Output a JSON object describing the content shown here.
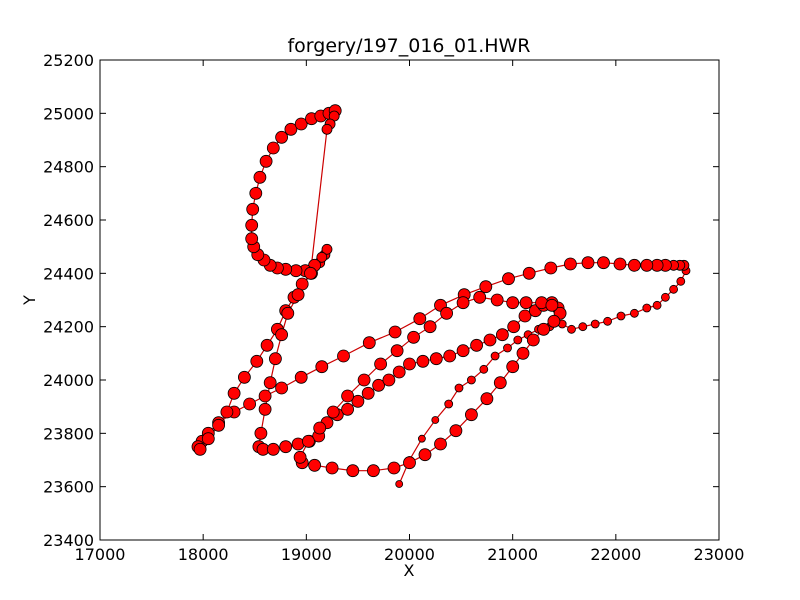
{
  "chart_data": {
    "type": "scatter",
    "title": "forgery/197_016_01.HWR",
    "xlabel": "X",
    "ylabel": "Y",
    "xlim": [
      17000,
      23000
    ],
    "ylim": [
      23400,
      25200
    ],
    "xticks": [
      17000,
      18000,
      19000,
      20000,
      21000,
      22000,
      23000
    ],
    "yticks": [
      23400,
      23600,
      23800,
      24000,
      24200,
      24400,
      24600,
      24800,
      25000,
      25200
    ],
    "grid": false,
    "legend": "none",
    "marker_color": "#ff0000",
    "line_color": "#cc0000",
    "edge_color": "#000000",
    "series": [
      {
        "points": [
          [
            19900,
            23610,
            3.5
          ],
          [
            20000,
            23700,
            3.5
          ],
          [
            20120,
            23780,
            3.5
          ],
          [
            20250,
            23850,
            3.5
          ],
          [
            20380,
            23910,
            4
          ],
          [
            20480,
            23970,
            4
          ],
          [
            20600,
            24000,
            4
          ],
          [
            20720,
            24040,
            4
          ],
          [
            20830,
            24090,
            4
          ],
          [
            20950,
            24120,
            4
          ],
          [
            21050,
            24150,
            4
          ],
          [
            21150,
            24170,
            4
          ],
          [
            21250,
            24190,
            4
          ],
          [
            21360,
            24200,
            4
          ],
          [
            21480,
            24210,
            4
          ],
          [
            21570,
            24190,
            4
          ],
          [
            21680,
            24200,
            4
          ],
          [
            21800,
            24210,
            4
          ],
          [
            21920,
            24220,
            4
          ],
          [
            22050,
            24240,
            4
          ],
          [
            22180,
            24250,
            4
          ],
          [
            22300,
            24270,
            4
          ],
          [
            22400,
            24280,
            4
          ],
          [
            22480,
            24310,
            4
          ],
          [
            22560,
            24340,
            4
          ],
          [
            22630,
            24370,
            4
          ],
          [
            22680,
            24410,
            4
          ],
          [
            22660,
            24430,
            5
          ],
          [
            22620,
            24430,
            5
          ],
          [
            22560,
            24430,
            5
          ],
          [
            22480,
            24430,
            6
          ],
          [
            22400,
            24430,
            6
          ],
          [
            22300,
            24430,
            6
          ],
          [
            22180,
            24430,
            6
          ],
          [
            22040,
            24435,
            6
          ],
          [
            21880,
            24440,
            6
          ],
          [
            21730,
            24440,
            6
          ],
          [
            21560,
            24435,
            6
          ],
          [
            21370,
            24420,
            6
          ],
          [
            21160,
            24400,
            6
          ],
          [
            20960,
            24380,
            6
          ],
          [
            20740,
            24350,
            6
          ],
          [
            20530,
            24320,
            6
          ],
          [
            20300,
            24280,
            6
          ],
          [
            20100,
            24230,
            6
          ],
          [
            19860,
            24180,
            6
          ],
          [
            19610,
            24140,
            6
          ],
          [
            19360,
            24090,
            6
          ],
          [
            19150,
            24050,
            6
          ],
          [
            18950,
            24010,
            6
          ],
          [
            18760,
            23970,
            6
          ],
          [
            18600,
            23940,
            6
          ],
          [
            18450,
            23910,
            6
          ],
          [
            18300,
            23880,
            6
          ],
          [
            18150,
            23840,
            6
          ],
          [
            18050,
            23800,
            6
          ],
          [
            17990,
            23770,
            6
          ],
          [
            17950,
            23750,
            6
          ],
          [
            17970,
            23740,
            6
          ],
          [
            18050,
            23780,
            6
          ],
          [
            18150,
            23830,
            6
          ],
          [
            18230,
            23880,
            6
          ],
          [
            18300,
            23950,
            6
          ],
          [
            18400,
            24010,
            6
          ],
          [
            18520,
            24070,
            6
          ],
          [
            18620,
            24130,
            6
          ],
          [
            18720,
            24190,
            6
          ],
          [
            18800,
            24260,
            6
          ],
          [
            18880,
            24310,
            6
          ],
          [
            18960,
            24360,
            6
          ],
          [
            19050,
            24400,
            6
          ],
          [
            19130,
            24440,
            5
          ],
          [
            19180,
            24470,
            5
          ],
          [
            19200,
            24490,
            5
          ],
          [
            19150,
            24460,
            5
          ],
          [
            19080,
            24430,
            6
          ],
          [
            18990,
            24410,
            6
          ],
          [
            18900,
            24410,
            6
          ],
          [
            18800,
            24415,
            6
          ],
          [
            18720,
            24420,
            6
          ],
          [
            18650,
            24430,
            6
          ],
          [
            18590,
            24450,
            6
          ],
          [
            18530,
            24470,
            6
          ],
          [
            18490,
            24500,
            6
          ],
          [
            18470,
            24530,
            6
          ],
          [
            18470,
            24580,
            6
          ],
          [
            18480,
            24640,
            6
          ],
          [
            18510,
            24700,
            6
          ],
          [
            18550,
            24760,
            6
          ],
          [
            18610,
            24820,
            6
          ],
          [
            18680,
            24870,
            6
          ],
          [
            18760,
            24910,
            6
          ],
          [
            18850,
            24940,
            6
          ],
          [
            18950,
            24960,
            6
          ],
          [
            19050,
            24980,
            6
          ],
          [
            19140,
            24990,
            6
          ],
          [
            19220,
            25000,
            6
          ],
          [
            19280,
            25010,
            6
          ],
          [
            19270,
            24990,
            5
          ],
          [
            19230,
            24960,
            5
          ],
          [
            19200,
            24940,
            5
          ],
          [
            19040,
            24400,
            6
          ],
          [
            18920,
            24320,
            6
          ],
          [
            18820,
            24250,
            6
          ],
          [
            18760,
            24170,
            6
          ],
          [
            18700,
            24080,
            6
          ],
          [
            18650,
            23990,
            6
          ],
          [
            18600,
            23890,
            6
          ],
          [
            18560,
            23800,
            6
          ],
          [
            18540,
            23750,
            6
          ],
          [
            18580,
            23740,
            6
          ],
          [
            18680,
            23740,
            6
          ],
          [
            18800,
            23750,
            6
          ],
          [
            18920,
            23760,
            6
          ],
          [
            19030,
            23770,
            6
          ],
          [
            19120,
            23790,
            6
          ],
          [
            19200,
            23840,
            6
          ],
          [
            19300,
            23870,
            6
          ],
          [
            19400,
            23890,
            6
          ],
          [
            19500,
            23920,
            6
          ],
          [
            19600,
            23950,
            6
          ],
          [
            19700,
            23980,
            6
          ],
          [
            19800,
            24000,
            6
          ],
          [
            19900,
            24030,
            6
          ],
          [
            20000,
            24060,
            6
          ],
          [
            20130,
            24070,
            6
          ],
          [
            20260,
            24080,
            6
          ],
          [
            20390,
            24090,
            6
          ],
          [
            20520,
            24110,
            6
          ],
          [
            20650,
            24130,
            6
          ],
          [
            20780,
            24150,
            6
          ],
          [
            20900,
            24170,
            6
          ],
          [
            21010,
            24200,
            6
          ],
          [
            21120,
            24240,
            6
          ],
          [
            21220,
            24260,
            6
          ],
          [
            21300,
            24280,
            6
          ],
          [
            21380,
            24290,
            6
          ],
          [
            21440,
            24270,
            6
          ],
          [
            21460,
            24250,
            6
          ],
          [
            21400,
            24220,
            6
          ],
          [
            21300,
            24190,
            6
          ],
          [
            21200,
            24150,
            6
          ],
          [
            21100,
            24100,
            6
          ],
          [
            21000,
            24050,
            6
          ],
          [
            20880,
            23990,
            6
          ],
          [
            20750,
            23930,
            6
          ],
          [
            20600,
            23870,
            6
          ],
          [
            20450,
            23810,
            6
          ],
          [
            20300,
            23760,
            6
          ],
          [
            20150,
            23720,
            6
          ],
          [
            20000,
            23690,
            6
          ],
          [
            19850,
            23670,
            6
          ],
          [
            19650,
            23660,
            6
          ],
          [
            19450,
            23660,
            6
          ],
          [
            19250,
            23670,
            6
          ],
          [
            19080,
            23680,
            6
          ],
          [
            18960,
            23690,
            6
          ],
          [
            18940,
            23710,
            6
          ],
          [
            19020,
            23770,
            6
          ],
          [
            19130,
            23820,
            6
          ],
          [
            19260,
            23880,
            6
          ],
          [
            19400,
            23940,
            6
          ],
          [
            19560,
            24000,
            6
          ],
          [
            19720,
            24060,
            6
          ],
          [
            19880,
            24110,
            6
          ],
          [
            20040,
            24160,
            6
          ],
          [
            20200,
            24200,
            6
          ],
          [
            20360,
            24250,
            6
          ],
          [
            20520,
            24290,
            6
          ],
          [
            20680,
            24310,
            6
          ],
          [
            20850,
            24300,
            6
          ],
          [
            21000,
            24290,
            6
          ],
          [
            21130,
            24290,
            6
          ],
          [
            21280,
            24290,
            6
          ],
          [
            21380,
            24280,
            6
          ]
        ]
      }
    ]
  }
}
